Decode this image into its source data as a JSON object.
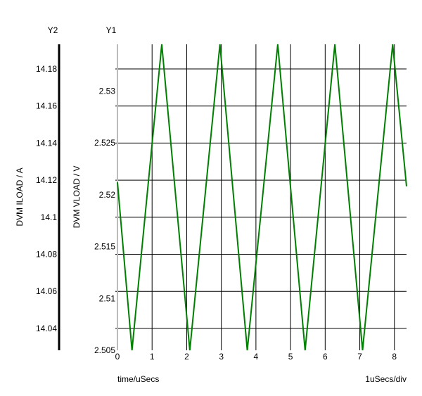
{
  "chart_data": {
    "type": "line",
    "xlabel": "time/uSecs",
    "x_scale_note": "1uSecs/div",
    "xlim": [
      0,
      8.35
    ],
    "x_ticks": [
      "0",
      "1",
      "2",
      "3",
      "4",
      "5",
      "6",
      "7",
      "8"
    ],
    "y1": {
      "axis_title": "Y1",
      "label": "DVM VLOAD / V",
      "ylim": [
        2.505,
        2.5345
      ],
      "ticks": [
        "2.505",
        "2.51",
        "2.515",
        "2.52",
        "2.525",
        "2.53"
      ]
    },
    "y2": {
      "axis_title": "Y2",
      "label": "DVM ILOAD / A",
      "ylim": [
        14.0282,
        14.1933
      ],
      "ticks": [
        "14.04",
        "14.06",
        "14.08",
        "14.1",
        "14.12",
        "14.14",
        "14.16",
        "14.18"
      ]
    },
    "grid": true,
    "series": [
      {
        "axis": "y1",
        "color": "#008000",
        "x": [
          0,
          0.42,
          1.28,
          2.09,
          2.96,
          3.75,
          4.63,
          5.42,
          6.28,
          7.08,
          7.95,
          8.35
        ],
        "y": [
          2.5212,
          2.505,
          2.5345,
          2.505,
          2.5345,
          2.505,
          2.5345,
          2.505,
          2.5345,
          2.505,
          2.5345,
          2.5208
        ]
      }
    ]
  }
}
